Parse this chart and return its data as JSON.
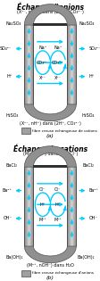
{
  "title_a": "Échange d'anions",
  "title_b": "Échange de cations",
  "subtitle_a_top": "(Xⁿ⁻, nNa⁺) dans (2Na⁺, CO₃²⁻)",
  "subtitle_a_bot": "(Xⁿ⁻, nH⁺) dans (2H⁺, CO₃²⁻)",
  "subtitle_b_top": "(Mⁿ⁺, nCl⁻) dans (H⁺, Cl⁻)",
  "subtitle_b_bot": "(Mⁿ⁺, nOH⁻) dans H₂O",
  "legend_a": "fibre creuse échangeuse de cations",
  "legend_b": "fibre creuse échangeuse d'anions",
  "left_a": "Na₂SO₄",
  "right_a": "Na₂SO₄",
  "left_bot_a": "H₂SO₄",
  "right_bot_a": "H₂SO₄",
  "left_b": "BaCl₂",
  "right_b": "BaCl₂",
  "left_bot_b": "Ba(OH)₂",
  "right_bot_b": "Ba(OH)₂",
  "inner_left_a": [
    "Na⁺",
    "CO₃²⁻",
    "Xⁿ⁻"
  ],
  "inner_right_a": [
    "Na⁺",
    "CO₃²⁻",
    "Xⁿ⁻"
  ],
  "inner_left_b": [
    "Cl⁻",
    "H⁺",
    "Mⁿ⁺"
  ],
  "inner_right_b": [
    "Cl⁻",
    "H⁺",
    "Mⁿ⁺"
  ],
  "side_left_a": [
    "SO₄²⁻",
    "H⁺"
  ],
  "side_right_a": [
    "SO₄²⁻",
    "H⁺"
  ],
  "side_left_b": [
    "Ba²⁺",
    "OH⁻"
  ],
  "side_right_b": [
    "Ba²⁺",
    "OH⁻"
  ],
  "cyan": "#00ccff",
  "gray_light": "#a0a0a0",
  "gray_dark": "#606060",
  "bg": "#ffffff",
  "tc": "#000000"
}
